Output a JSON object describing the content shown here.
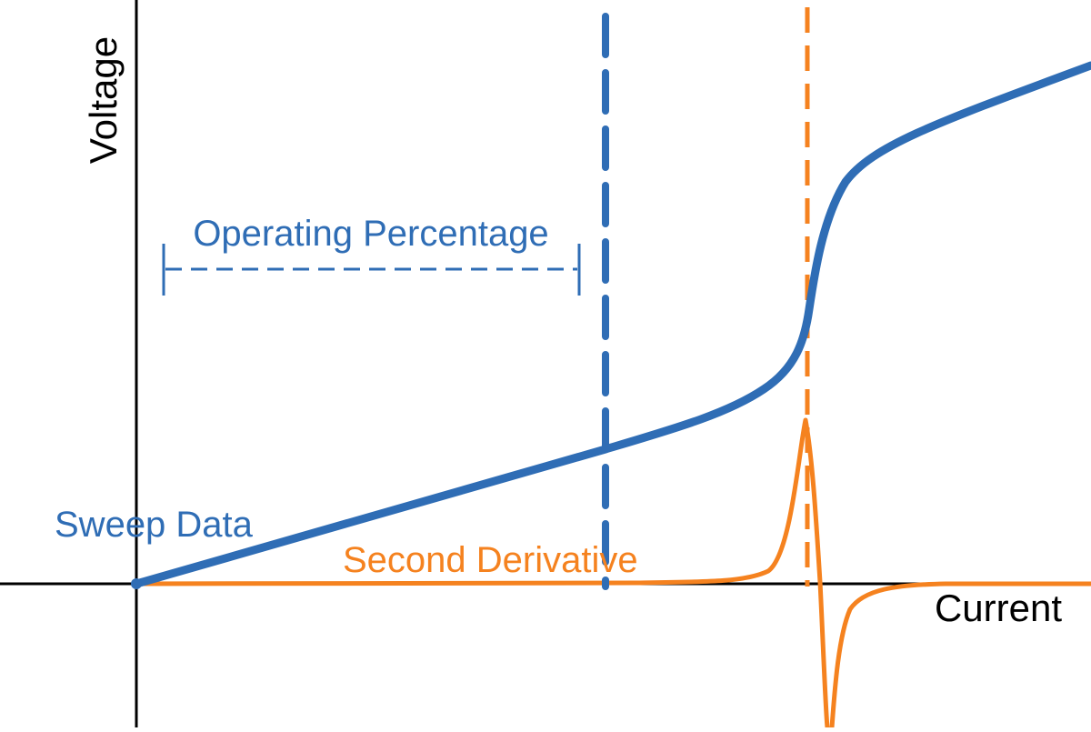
{
  "labels": {
    "y_axis": "Voltage",
    "x_axis": "Current",
    "sweep": "Sweep Data",
    "second_derivative": "Second Derivative",
    "operating": "Operating Percentage"
  },
  "colors": {
    "axis": "#000000",
    "sweep": "#2f6db5",
    "second_derivative": "#f5821f"
  }
}
